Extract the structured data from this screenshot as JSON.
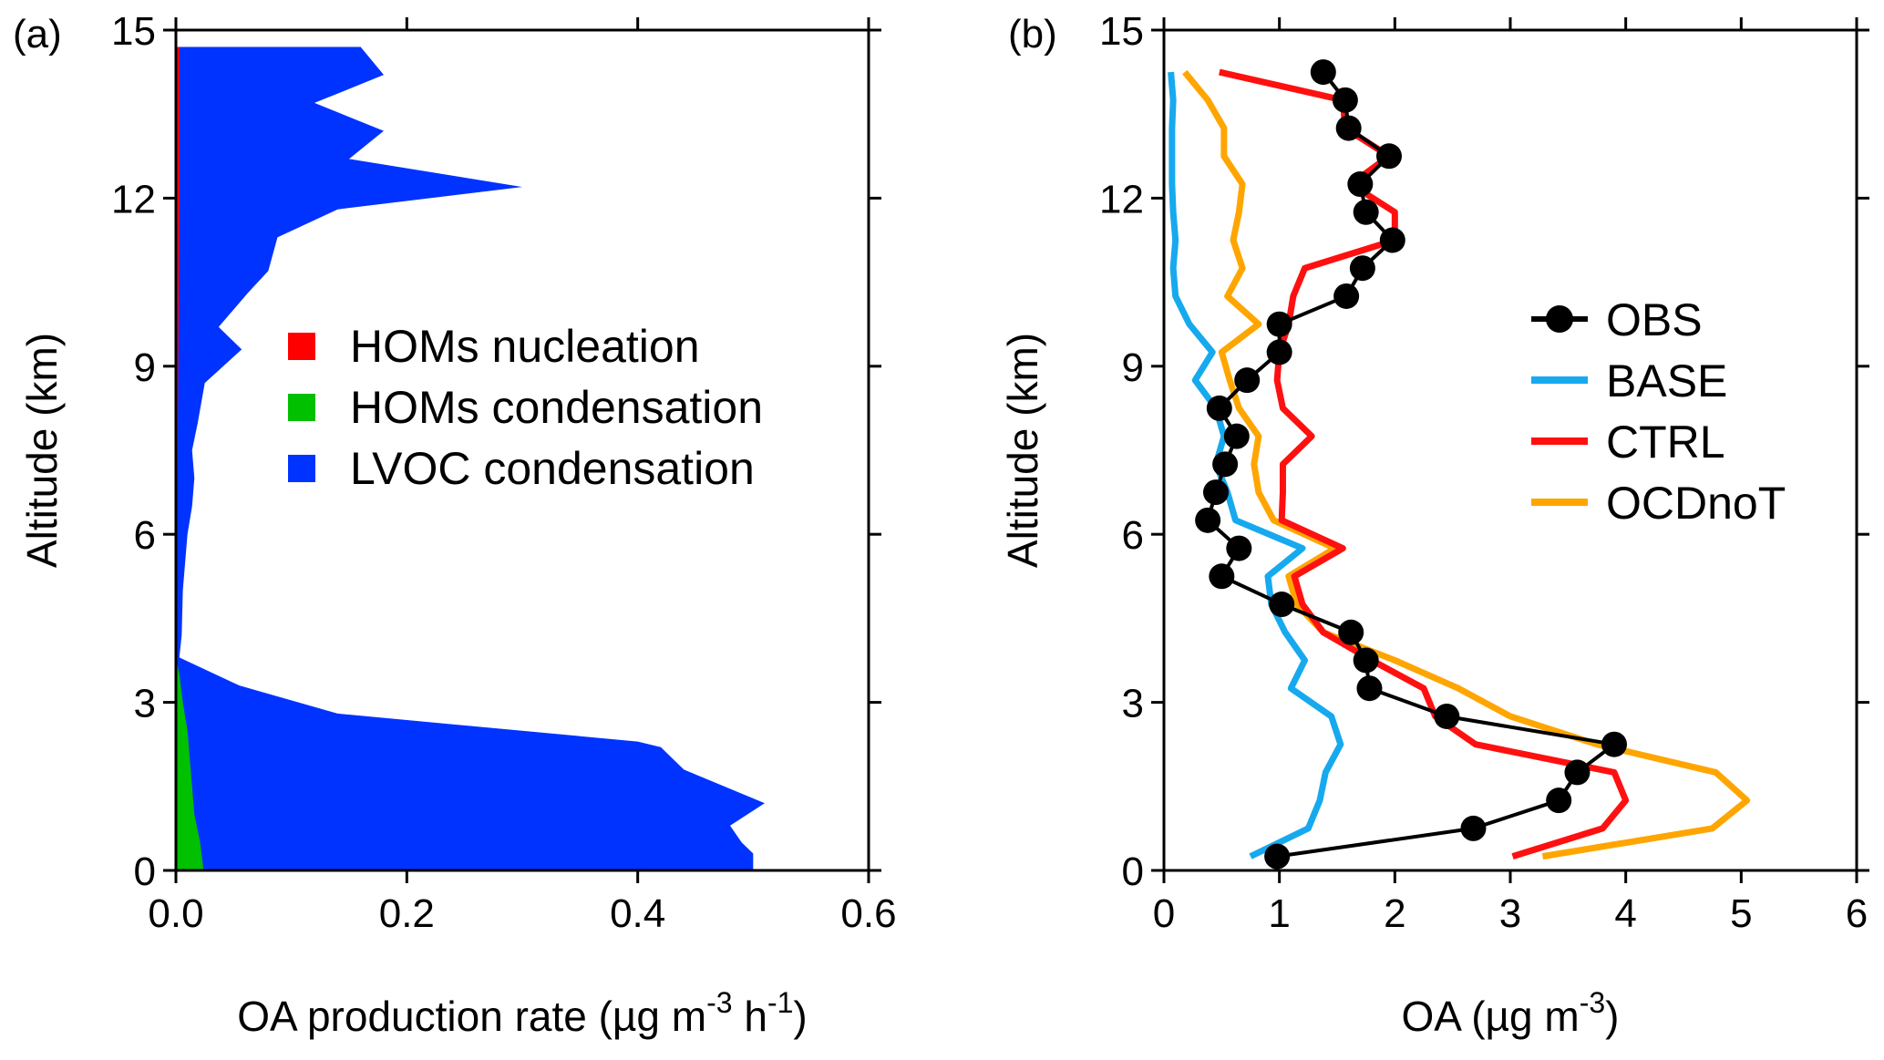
{
  "chart_data": [
    {
      "panel": "a",
      "panel_label": "(a)",
      "type": "area",
      "xlabel": "OA production rate (µg m",
      "xlabel_sup1": "-3",
      "xlabel_mid": " h",
      "xlabel_sup2": "-1",
      "xlabel_end": ")",
      "ylabel": "Altitude (km)",
      "xlim": [
        0,
        0.6
      ],
      "ylim": [
        0,
        15
      ],
      "xticks": [
        "0.0",
        "0.2",
        "0.4",
        "0.6"
      ],
      "xtick_values": [
        0,
        0.2,
        0.4,
        0.6
      ],
      "yticks": [
        "0",
        "3",
        "6",
        "9",
        "12",
        "15"
      ],
      "ytick_values": [
        0,
        3,
        6,
        9,
        12,
        15
      ],
      "legend": [
        {
          "label": "HOMs nucleation",
          "color": "#ff0000"
        },
        {
          "label": "HOMs condensation",
          "color": "#00c000"
        },
        {
          "label": "LVOC condensation",
          "color": "#0033ff"
        }
      ],
      "series": [
        {
          "name": "LVOC condensation",
          "color": "#0033ff",
          "y": [
            0,
            0.3,
            0.5,
            0.8,
            1.2,
            1.8,
            2.2,
            2.3,
            2.8,
            3.3,
            3.8,
            4.2,
            5.0,
            5.5,
            6.0,
            6.5,
            7.0,
            7.5,
            8.0,
            8.7,
            9.3,
            9.7,
            10.3,
            10.7,
            11.3,
            11.8,
            12.2,
            12.7,
            13.2,
            13.7,
            14.2,
            14.7
          ],
          "x": [
            0.5,
            0.5,
            0.49,
            0.48,
            0.51,
            0.44,
            0.42,
            0.4,
            0.14,
            0.055,
            0.003,
            0.005,
            0.006,
            0.008,
            0.01,
            0.014,
            0.016,
            0.014,
            0.019,
            0.025,
            0.057,
            0.037,
            0.062,
            0.08,
            0.088,
            0.14,
            0.3,
            0.15,
            0.18,
            0.12,
            0.18,
            0.16
          ]
        },
        {
          "name": "HOMs condensation",
          "color": "#00c000",
          "y": [
            0,
            0.5,
            1.0,
            1.5,
            2.0,
            2.5,
            3.0,
            3.5,
            3.8
          ],
          "x": [
            0.024,
            0.021,
            0.016,
            0.014,
            0.012,
            0.01,
            0.006,
            0.003,
            0.0
          ]
        },
        {
          "name": "HOMs nucleation",
          "color": "#ff0000",
          "y": [
            0,
            3.0,
            6.0,
            9.0,
            12.0,
            14.7
          ],
          "x": [
            0.0,
            0.0005,
            0.001,
            0.002,
            0.003,
            0.003
          ]
        }
      ]
    },
    {
      "panel": "b",
      "panel_label": "(b)",
      "type": "line",
      "xlabel": "OA (µg m",
      "xlabel_sup1": "-3",
      "xlabel_end": ")",
      "ylabel": "Altitude (km)",
      "xlim": [
        0,
        6
      ],
      "ylim": [
        0,
        15
      ],
      "xticks": [
        "0",
        "1",
        "2",
        "3",
        "4",
        "5",
        "6"
      ],
      "xtick_values": [
        0,
        1,
        2,
        3,
        4,
        5,
        6
      ],
      "yticks": [
        "0",
        "3",
        "6",
        "9",
        "12",
        "15"
      ],
      "ytick_values": [
        0,
        3,
        6,
        9,
        12,
        15
      ],
      "legend": [
        {
          "label": "OBS",
          "color": "#000000",
          "marker": true
        },
        {
          "label": "BASE",
          "color": "#17a9ee"
        },
        {
          "label": "CTRL",
          "color": "#ff1010"
        },
        {
          "label": "OCDnoT",
          "color": "#ffa500"
        }
      ],
      "series": [
        {
          "name": "OBS",
          "color": "#000000",
          "marker": true,
          "x": [
            0.98,
            2.68,
            3.42,
            3.58,
            3.9,
            2.45,
            1.78,
            1.75,
            1.62,
            1.02,
            0.5,
            0.65,
            0.38,
            0.45,
            0.53,
            0.63,
            0.48,
            0.72,
            1.0,
            1.0,
            1.58,
            1.72,
            1.98,
            1.75,
            1.7,
            1.95,
            1.6,
            1.57,
            1.38
          ],
          "y": [
            0.25,
            0.75,
            1.25,
            1.75,
            2.25,
            2.75,
            3.25,
            3.75,
            4.25,
            4.75,
            5.25,
            5.75,
            6.25,
            6.75,
            7.25,
            7.75,
            8.25,
            8.75,
            9.25,
            9.75,
            10.25,
            10.75,
            11.25,
            11.75,
            12.25,
            12.75,
            13.25,
            13.75,
            14.25
          ]
        },
        {
          "name": "BASE",
          "color": "#17a9ee",
          "x": [
            0.75,
            1.25,
            1.35,
            1.4,
            1.53,
            1.45,
            1.1,
            1.22,
            1.05,
            0.93,
            0.9,
            1.2,
            0.62,
            0.55,
            0.45,
            0.52,
            0.45,
            0.27,
            0.42,
            0.22,
            0.1,
            0.08,
            0.1,
            0.08,
            0.07,
            0.07,
            0.07,
            0.08,
            0.06
          ],
          "y": [
            0.25,
            0.75,
            1.25,
            1.75,
            2.25,
            2.75,
            3.25,
            3.75,
            4.25,
            4.75,
            5.25,
            5.75,
            6.25,
            6.75,
            7.25,
            7.75,
            8.25,
            8.75,
            9.25,
            9.75,
            10.25,
            10.75,
            11.25,
            11.75,
            12.25,
            12.75,
            13.25,
            13.75,
            14.25
          ]
        },
        {
          "name": "CTRL",
          "color": "#ff1010",
          "x": [
            3.02,
            3.8,
            4.0,
            3.9,
            2.7,
            2.35,
            2.25,
            1.8,
            1.38,
            1.2,
            1.13,
            1.55,
            1.02,
            1.03,
            1.03,
            1.28,
            1.03,
            0.98,
            1.0,
            1.08,
            1.12,
            1.22,
            2.0,
            2.0,
            1.62,
            1.95,
            1.57,
            1.55,
            0.48
          ],
          "y": [
            0.25,
            0.75,
            1.25,
            1.75,
            2.25,
            2.75,
            3.25,
            3.75,
            4.25,
            4.75,
            5.25,
            5.75,
            6.25,
            6.75,
            7.25,
            7.75,
            8.25,
            8.75,
            9.25,
            9.75,
            10.25,
            10.75,
            11.25,
            11.75,
            12.25,
            12.75,
            13.25,
            13.75,
            14.25
          ]
        },
        {
          "name": "OCDnoT",
          "color": "#ffa500",
          "x": [
            3.28,
            4.75,
            5.05,
            4.78,
            3.75,
            3.0,
            2.55,
            2.0,
            1.38,
            1.15,
            1.08,
            1.48,
            0.95,
            0.82,
            0.78,
            0.82,
            0.65,
            0.57,
            0.5,
            0.82,
            0.55,
            0.68,
            0.6,
            0.65,
            0.68,
            0.52,
            0.52,
            0.38,
            0.18
          ],
          "y": [
            0.25,
            0.75,
            1.25,
            1.75,
            2.25,
            2.75,
            3.25,
            3.75,
            4.25,
            4.75,
            5.25,
            5.75,
            6.25,
            6.75,
            7.25,
            7.75,
            8.25,
            8.75,
            9.25,
            9.75,
            10.25,
            10.75,
            11.25,
            11.75,
            12.25,
            12.75,
            13.25,
            13.75,
            14.25
          ]
        }
      ]
    }
  ]
}
